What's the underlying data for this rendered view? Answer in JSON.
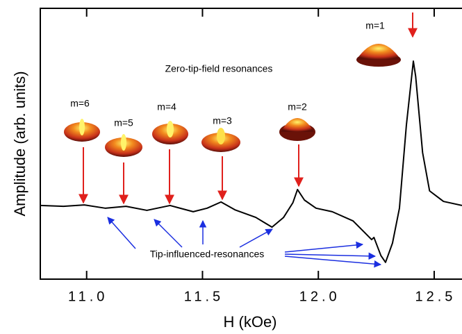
{
  "chart_data": {
    "type": "line",
    "x_label": "H (kOe)",
    "y_label": "Amplitude (arb. units)",
    "x": [
      10.8,
      10.9,
      10.99,
      11.08,
      11.17,
      11.26,
      11.36,
      11.46,
      11.52,
      11.58,
      11.64,
      11.73,
      11.8,
      11.85,
      11.89,
      11.91,
      11.94,
      11.99,
      12.06,
      12.15,
      12.2,
      12.23,
      12.24,
      12.27,
      12.29,
      12.32,
      12.35,
      12.38,
      12.41,
      12.42,
      12.45,
      12.48,
      12.54,
      12.62
    ],
    "series": [
      {
        "color": "#000000",
        "values": [
          27.2,
          26.9,
          27.4,
          26.2,
          26.9,
          25.4,
          27.2,
          24.9,
          26.2,
          28.5,
          25.6,
          22.8,
          19.2,
          22.8,
          28.2,
          33.1,
          29.2,
          26.2,
          24.9,
          21.5,
          17.2,
          14.6,
          15.4,
          8.7,
          6.2,
          13.3,
          26.2,
          56.9,
          80.5,
          74.9,
          46.7,
          32.6,
          28.7,
          27.2
        ]
      }
    ],
    "xlim": [
      10.8,
      12.62
    ],
    "ylim": [
      0,
      100
    ],
    "xticks": [
      {
        "value": 11,
        "label": "11.0"
      },
      {
        "value": 11.5,
        "label": "11.5"
      },
      {
        "value": 12,
        "label": "12.0"
      },
      {
        "value": 12.5,
        "label": "12.5"
      }
    ],
    "annotations": [
      {
        "text": "m=1"
      },
      {
        "text": "m=2"
      },
      {
        "text": "m=3"
      },
      {
        "text": "m=4"
      },
      {
        "text": "m=5"
      },
      {
        "text": "m=6"
      },
      {
        "text": "Zero-tip-field resonances"
      },
      {
        "text": "Tip-influenced-resonances"
      }
    ]
  }
}
